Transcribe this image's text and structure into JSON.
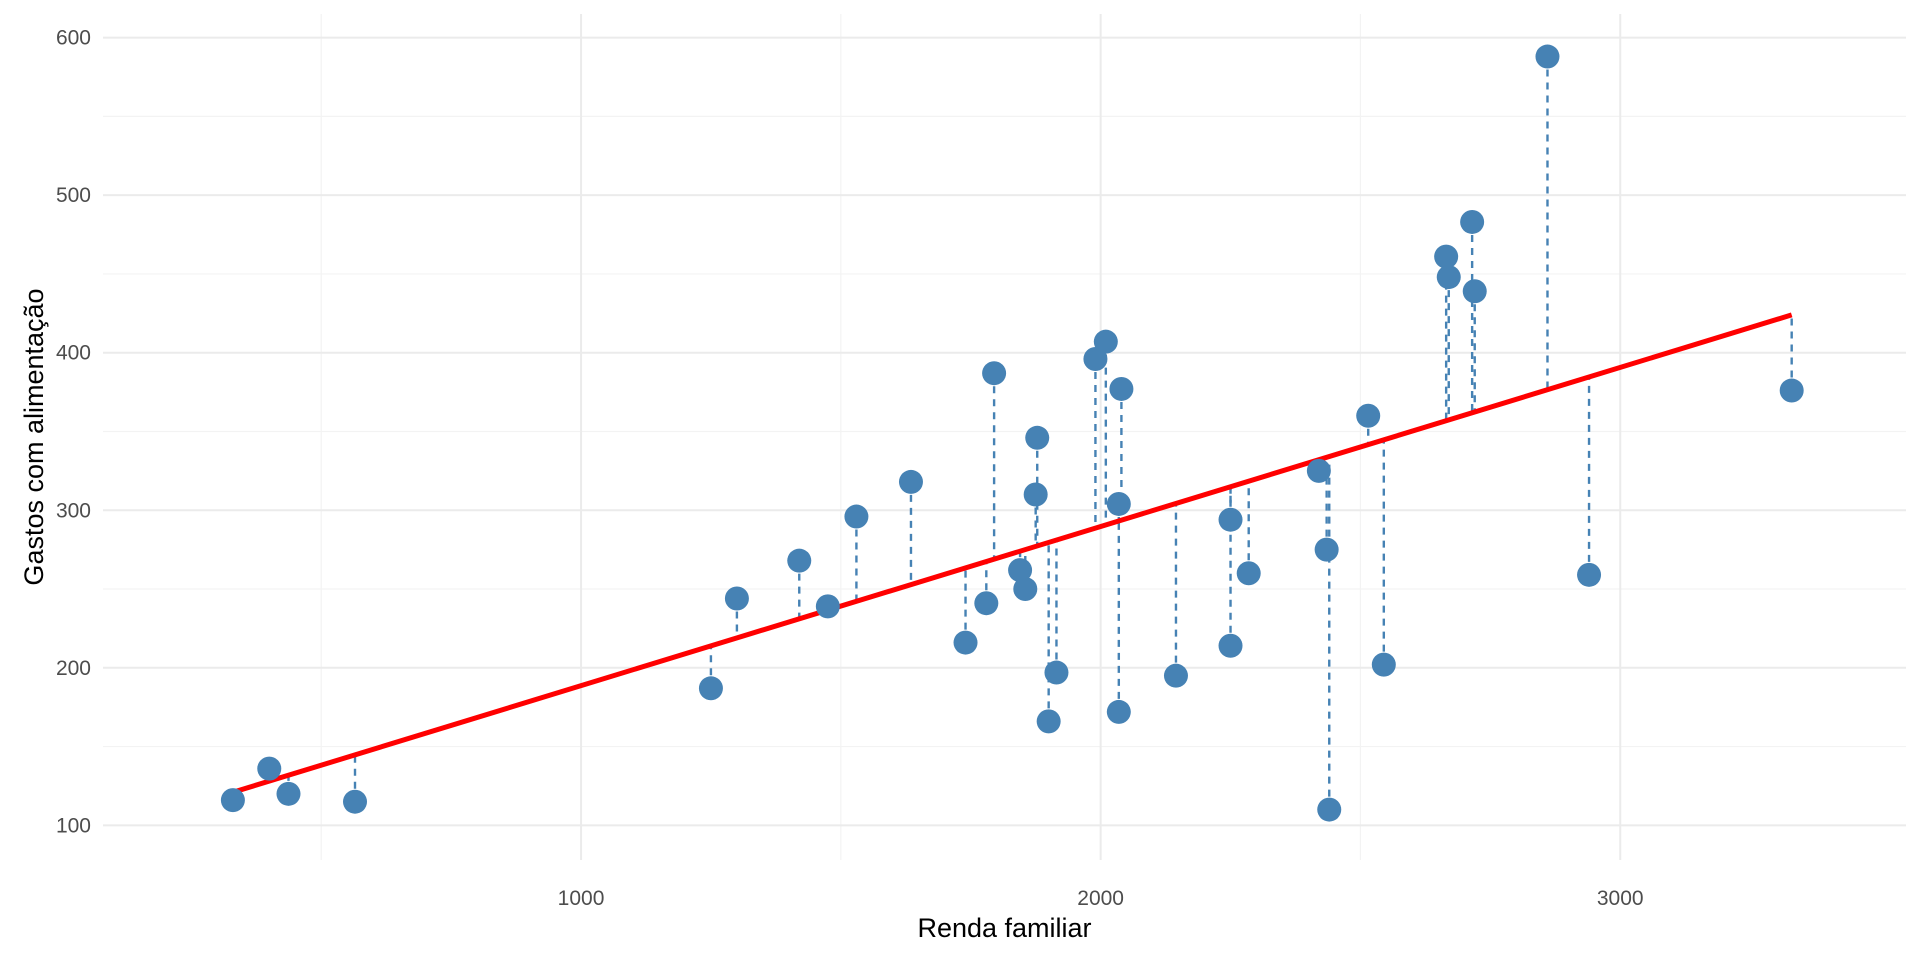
{
  "chart_data": {
    "type": "scatter",
    "title": "",
    "xlabel": "Renda familiar",
    "ylabel": "Gastos com alimentação",
    "xlim": [
      80,
      3550
    ],
    "ylim": [
      78,
      615
    ],
    "x_ticks": [
      1000,
      2000,
      3000
    ],
    "x_minor_ticks": [
      500,
      1500,
      2500
    ],
    "y_ticks": [
      100,
      200,
      300,
      400,
      500,
      600
    ],
    "y_minor_ticks": [
      150,
      250,
      350,
      450,
      550
    ],
    "grid": true,
    "legend": "none",
    "point_color": "#4682b4",
    "fit_color": "#ff0000",
    "residual_color": "#4682b4",
    "fit_line": {
      "x": [
        330,
        3330
      ],
      "y": [
        121,
        424
      ]
    },
    "points": [
      {
        "x": 330,
        "y": 116
      },
      {
        "x": 400,
        "y": 136
      },
      {
        "x": 437,
        "y": 120
      },
      {
        "x": 565,
        "y": 115
      },
      {
        "x": 1250,
        "y": 187
      },
      {
        "x": 1300,
        "y": 244
      },
      {
        "x": 1420,
        "y": 268
      },
      {
        "x": 1475,
        "y": 239
      },
      {
        "x": 1530,
        "y": 296
      },
      {
        "x": 1635,
        "y": 318
      },
      {
        "x": 1740,
        "y": 216
      },
      {
        "x": 1780,
        "y": 241
      },
      {
        "x": 1795,
        "y": 387
      },
      {
        "x": 1845,
        "y": 262
      },
      {
        "x": 1855,
        "y": 250
      },
      {
        "x": 1875,
        "y": 310
      },
      {
        "x": 1878,
        "y": 346
      },
      {
        "x": 1900,
        "y": 166
      },
      {
        "x": 1915,
        "y": 197
      },
      {
        "x": 1990,
        "y": 396
      },
      {
        "x": 2010,
        "y": 407
      },
      {
        "x": 2035,
        "y": 304
      },
      {
        "x": 2035,
        "y": 172
      },
      {
        "x": 2040,
        "y": 377
      },
      {
        "x": 2145,
        "y": 195
      },
      {
        "x": 2250,
        "y": 294
      },
      {
        "x": 2250,
        "y": 214
      },
      {
        "x": 2285,
        "y": 260
      },
      {
        "x": 2420,
        "y": 325
      },
      {
        "x": 2435,
        "y": 275
      },
      {
        "x": 2440,
        "y": 110
      },
      {
        "x": 2515,
        "y": 360
      },
      {
        "x": 2545,
        "y": 202
      },
      {
        "x": 2665,
        "y": 461
      },
      {
        "x": 2670,
        "y": 448
      },
      {
        "x": 2715,
        "y": 483
      },
      {
        "x": 2720,
        "y": 439
      },
      {
        "x": 2860,
        "y": 588
      },
      {
        "x": 2940,
        "y": 259
      },
      {
        "x": 3330,
        "y": 376
      }
    ]
  }
}
